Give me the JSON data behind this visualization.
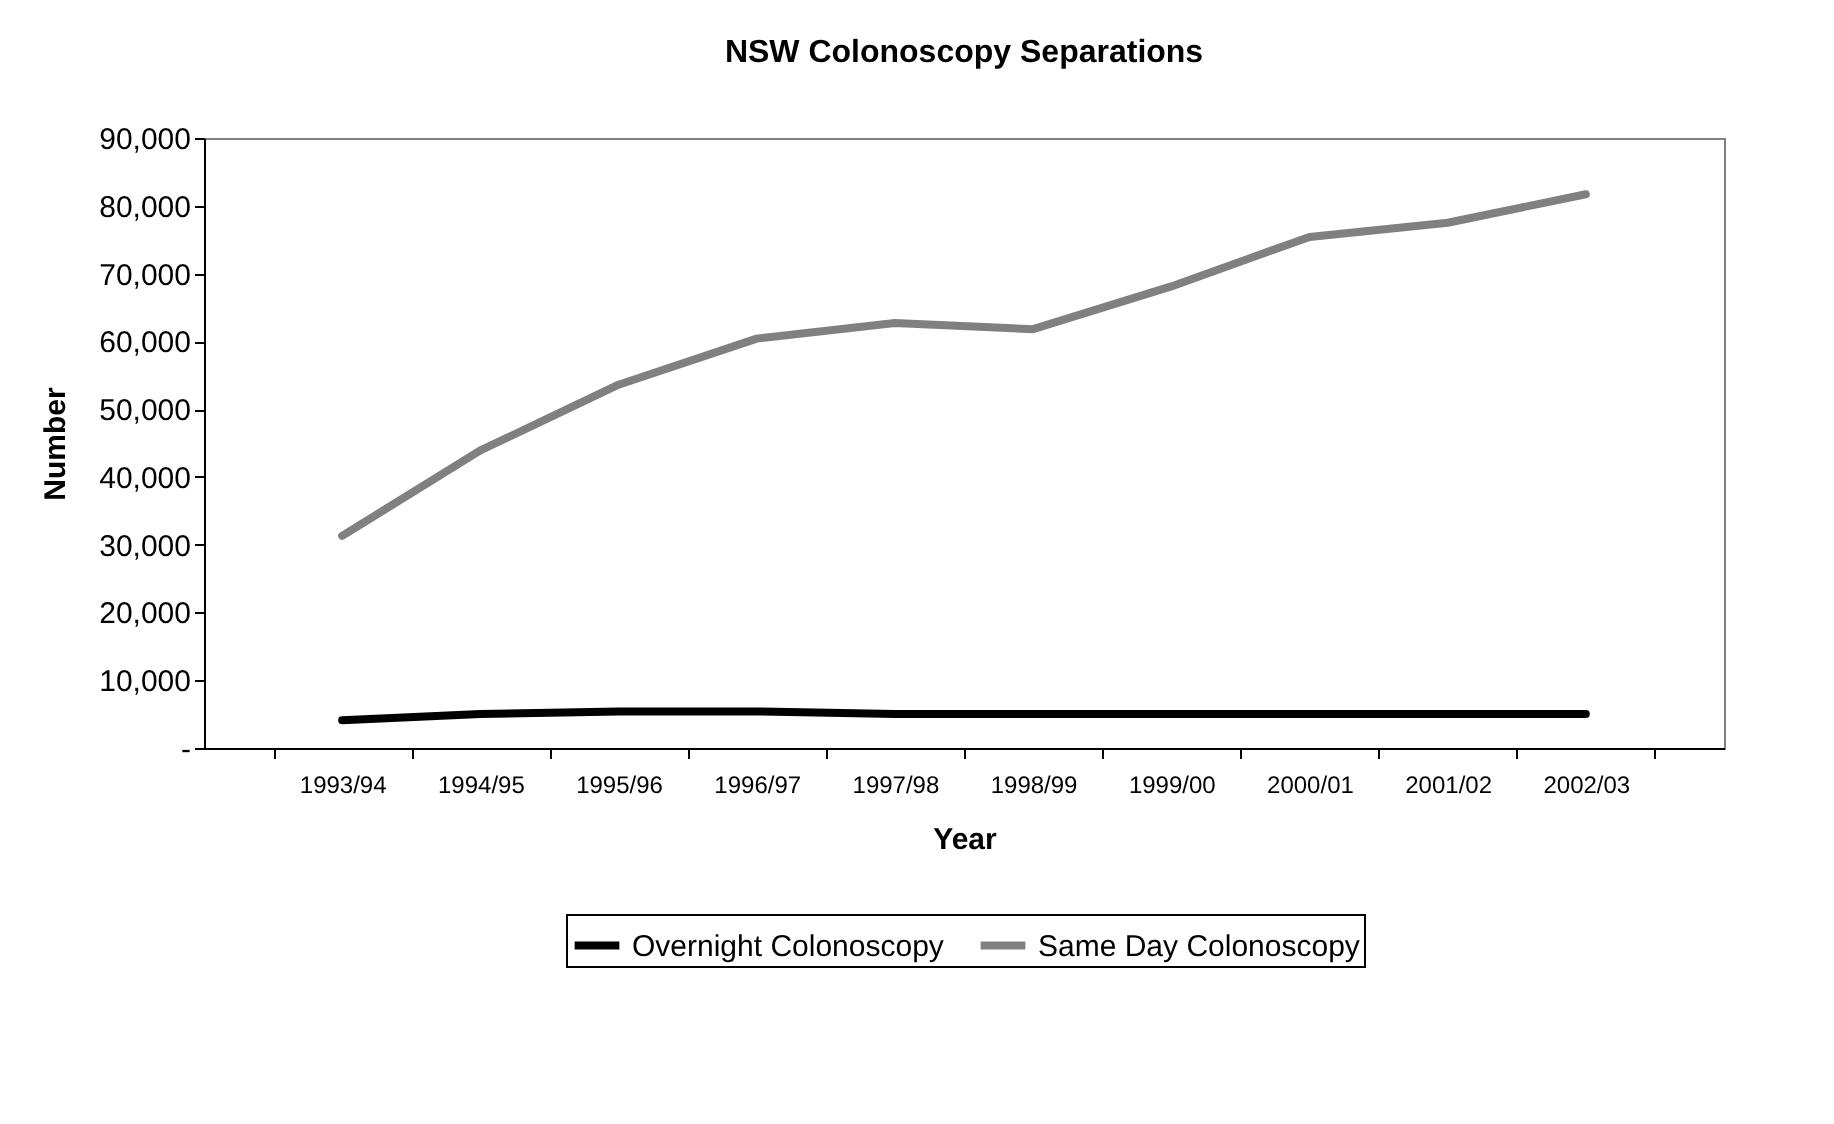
{
  "chart_data": {
    "type": "line",
    "title": "NSW Colonoscopy Separations",
    "xlabel": "Year",
    "ylabel": "Number",
    "categories": [
      "1993/94",
      "1994/95",
      "1995/96",
      "1996/97",
      "1997/98",
      "1998/99",
      "1999/00",
      "2000/01",
      "2001/02",
      "2002/03"
    ],
    "series": [
      {
        "name": "Overnight Colonoscopy",
        "color": "#000000",
        "values": [
          4100,
          5000,
          5400,
          5400,
          5000,
          5000,
          5000,
          5000,
          5000,
          5000
        ]
      },
      {
        "name": "Same Day Colonoscopy",
        "color": "#808080",
        "values": [
          31300,
          43900,
          53600,
          60400,
          62700,
          61800,
          68100,
          75400,
          77500,
          81700
        ]
      }
    ],
    "ylim": [
      0,
      90000
    ],
    "yticks": [
      {
        "value": 0,
        "label": "-"
      },
      {
        "value": 10000,
        "label": "10,000"
      },
      {
        "value": 20000,
        "label": "20,000"
      },
      {
        "value": 30000,
        "label": "30,000"
      },
      {
        "value": 40000,
        "label": "40,000"
      },
      {
        "value": 50000,
        "label": "50,000"
      },
      {
        "value": 60000,
        "label": "60,000"
      },
      {
        "value": 70000,
        "label": "70,000"
      },
      {
        "value": 80000,
        "label": "80,000"
      },
      {
        "value": 90000,
        "label": "90,000"
      }
    ],
    "legend": "bottom",
    "grid": false,
    "marker": "none",
    "line_style": "solid"
  }
}
